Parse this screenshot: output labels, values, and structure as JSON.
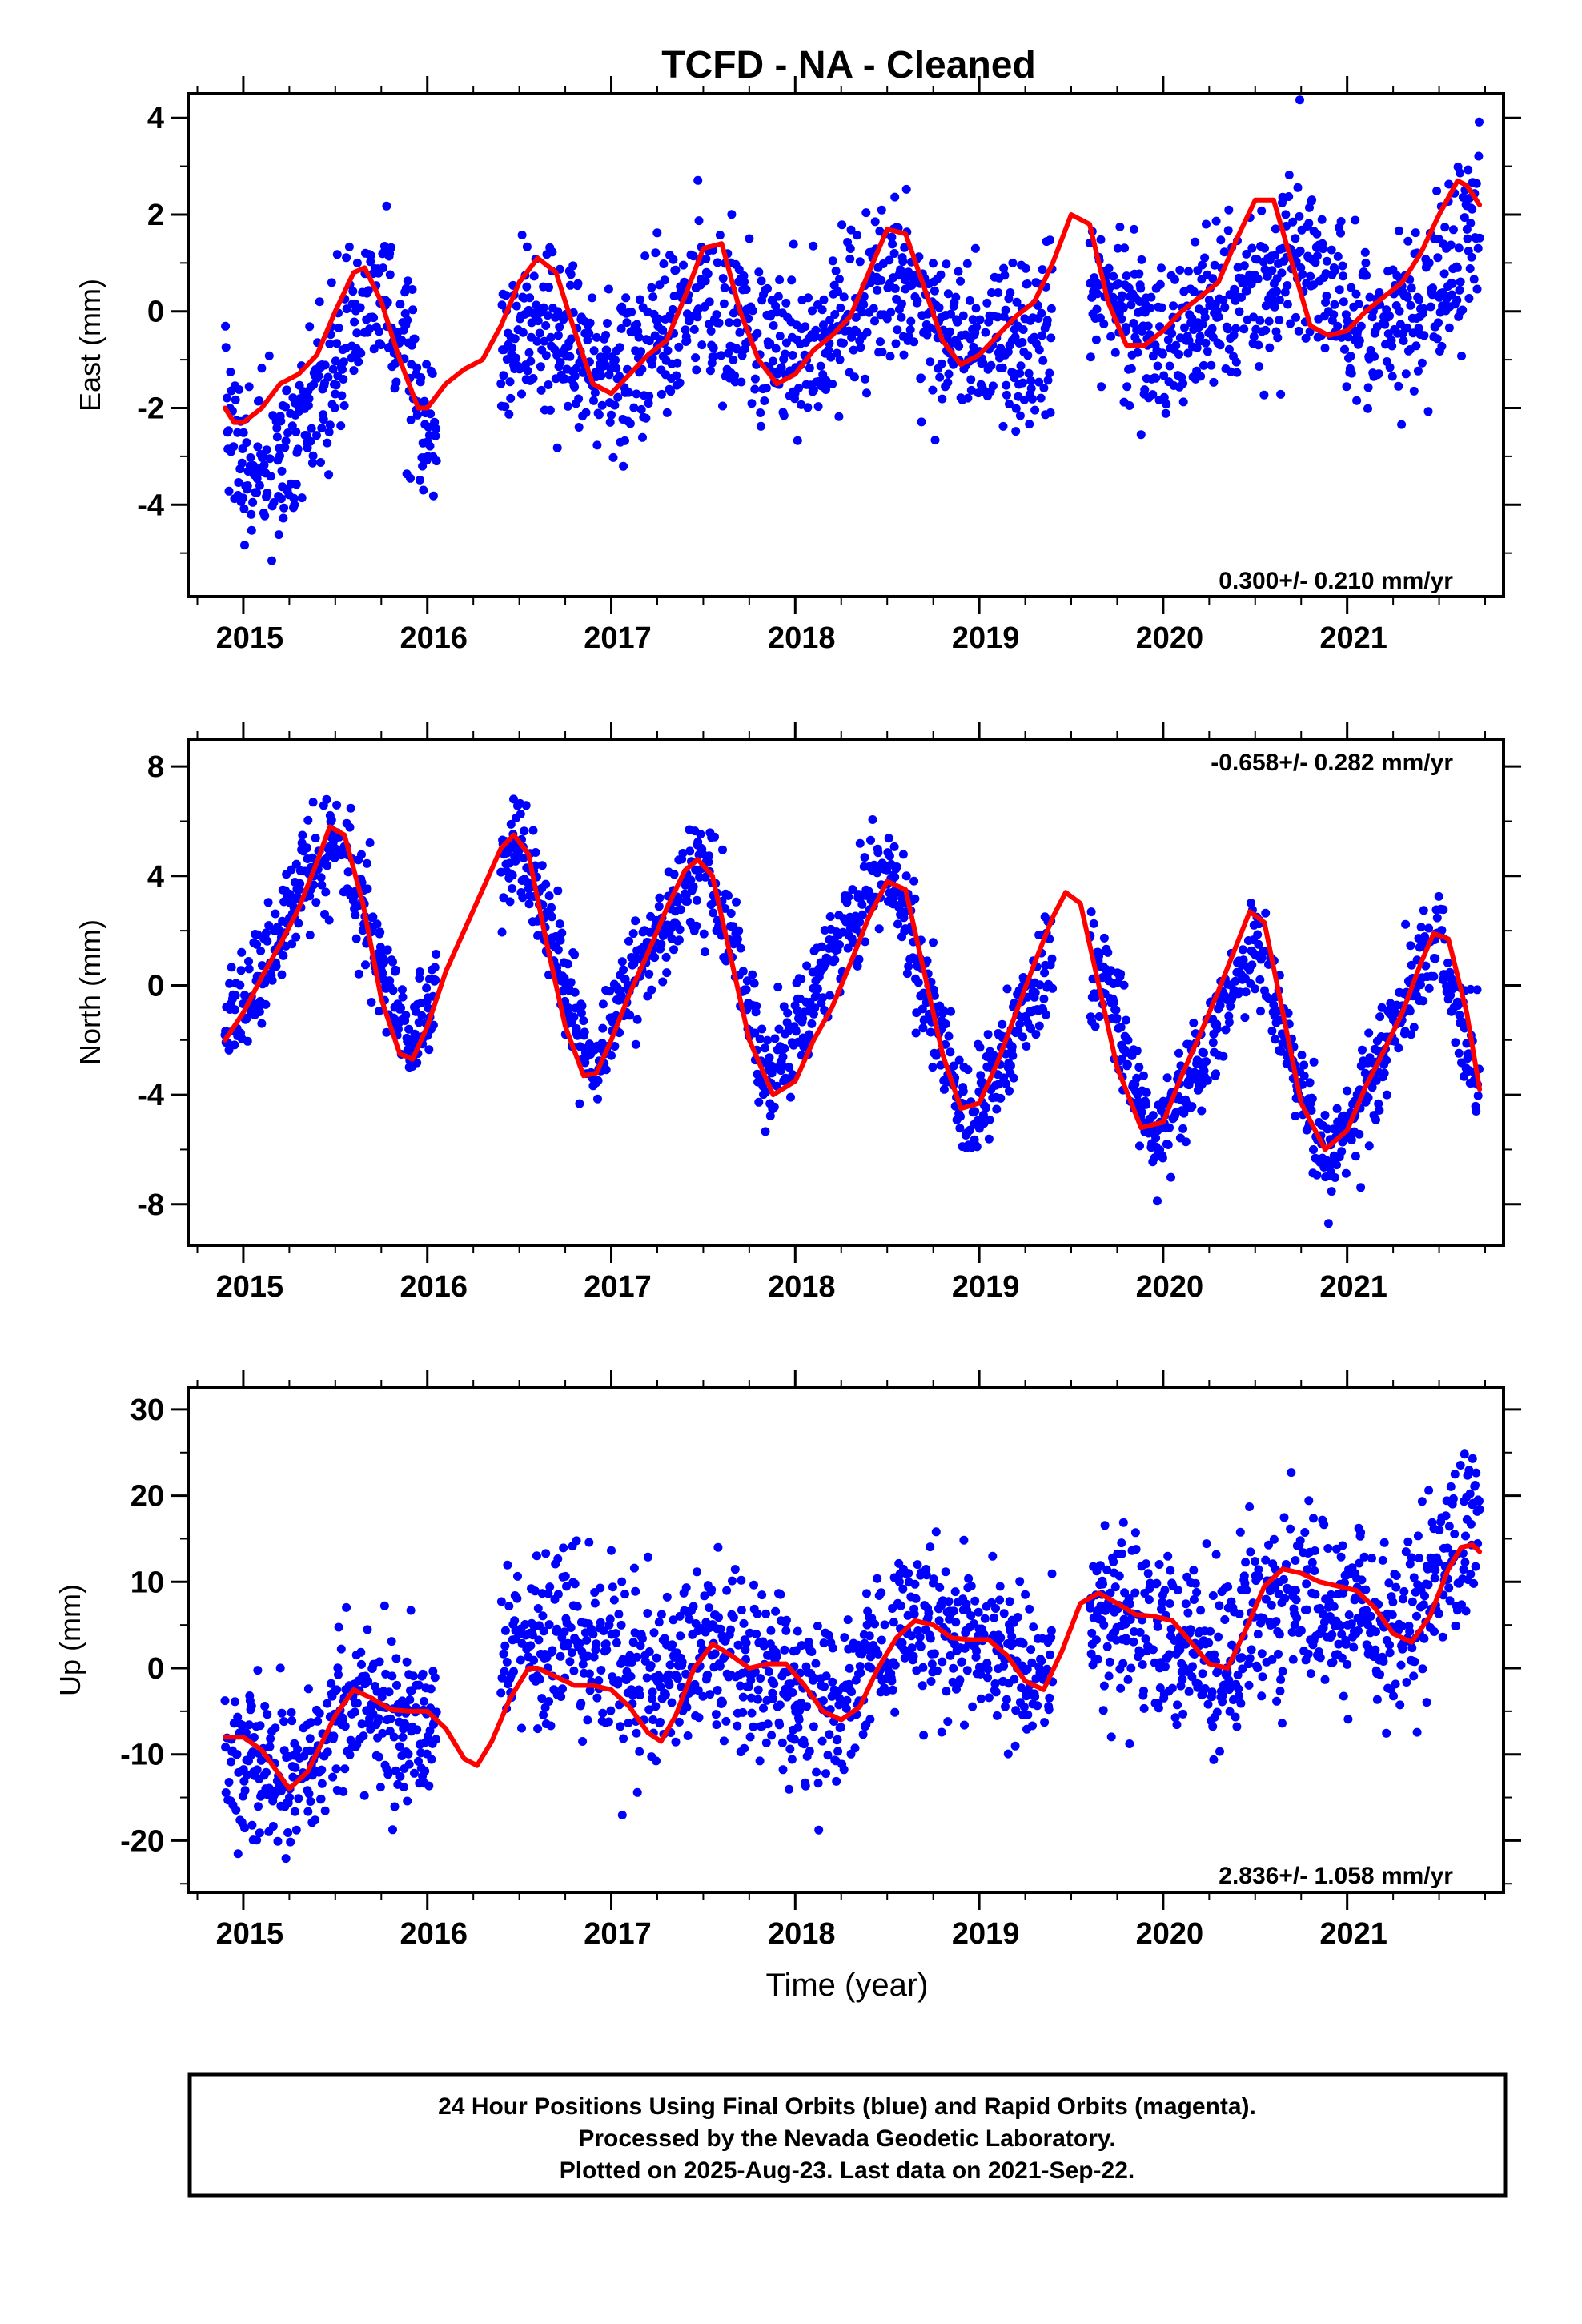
{
  "title": "TCFD  - NA - Cleaned",
  "xlabel": "Time (year)",
  "footer": {
    "line1": "24 Hour Positions Using Final Orbits (blue) and Rapid Orbits (magenta).",
    "line2": "Processed by the Nevada Geodetic Laboratory.",
    "line3": "Plotted on 2025-Aug-23. Last data on 2021-Sep-22."
  },
  "colors": {
    "points": "#0000ff",
    "fit": "#ff0000",
    "axes": "#000000"
  },
  "chart_data": [
    {
      "type": "scatter",
      "ylabel": "East (mm)",
      "rate_label": "0.300+/- 0.210 mm/yr",
      "rate_position": "bottom-right",
      "xlim": [
        2014.7,
        2021.85
      ],
      "ylim": [
        -5.9,
        4.5
      ],
      "xticks": [
        2015,
        2016,
        2017,
        2018,
        2019,
        2020,
        2021
      ],
      "yticks": [
        -4,
        -2,
        0,
        2,
        4
      ],
      "series": [
        {
          "kind": "points",
          "gaps": [
            [
              2016.05,
              2016.4
            ],
            [
              2019.4,
              2019.6
            ]
          ],
          "annual_amplitude": 1.3,
          "annual_phase": 0.6,
          "noise_sd": 0.85,
          "offsets": [
            [
              2014.9,
              -2.0
            ],
            [
              2015.0,
              -3.4
            ],
            [
              2015.3,
              -2.5
            ],
            [
              2015.6,
              -0.4
            ],
            [
              2015.75,
              0.6
            ],
            [
              2016.0,
              -2.5
            ],
            [
              2016.5,
              -0.2
            ],
            [
              2017.0,
              -1.3
            ],
            [
              2017.5,
              0.4
            ],
            [
              2018.0,
              -1.0
            ],
            [
              2018.5,
              0.6
            ],
            [
              2019.0,
              -0.8
            ],
            [
              2019.4,
              -0.3
            ],
            [
              2019.7,
              0.5
            ],
            [
              2020.0,
              -0.8
            ],
            [
              2020.5,
              0.4
            ],
            [
              2020.8,
              1.4
            ],
            [
              2021.0,
              -0.4
            ],
            [
              2021.5,
              0.5
            ],
            [
              2021.72,
              2.2
            ]
          ]
        },
        {
          "kind": "fit",
          "x": [
            2014.9,
            2014.95,
            2015.0,
            2015.1,
            2015.2,
            2015.3,
            2015.4,
            2015.5,
            2015.6,
            2015.66,
            2015.75,
            2015.85,
            2015.95,
            2016.0,
            2016.1,
            2016.2,
            2016.3,
            2016.4,
            2016.5,
            2016.6,
            2016.7,
            2016.8,
            2016.9,
            2017.0,
            2017.1,
            2017.2,
            2017.3,
            2017.4,
            2017.5,
            2017.6,
            2017.7,
            2017.8,
            2017.9,
            2018.0,
            2018.1,
            2018.2,
            2018.3,
            2018.4,
            2018.5,
            2018.6,
            2018.7,
            2018.8,
            2018.9,
            2019.0,
            2019.1,
            2019.2,
            2019.3,
            2019.4,
            2019.5,
            2019.6,
            2019.7,
            2019.8,
            2019.9,
            2020.0,
            2020.1,
            2020.2,
            2020.3,
            2020.4,
            2020.5,
            2020.6,
            2020.7,
            2020.8,
            2020.9,
            2021.0,
            2021.1,
            2021.2,
            2021.3,
            2021.4,
            2021.5,
            2021.6,
            2021.65,
            2021.72
          ],
          "y": [
            -2.0,
            -2.3,
            -2.3,
            -2.0,
            -1.5,
            -1.3,
            -0.9,
            0.0,
            0.8,
            0.9,
            0.2,
            -1.0,
            -2.0,
            -2.0,
            -1.5,
            -1.2,
            -1.0,
            -0.3,
            0.6,
            1.1,
            0.8,
            -0.4,
            -1.5,
            -1.7,
            -1.3,
            -0.9,
            -0.6,
            0.3,
            1.3,
            1.4,
            0.0,
            -1.0,
            -1.5,
            -1.3,
            -0.8,
            -0.5,
            -0.1,
            0.8,
            1.7,
            1.6,
            0.5,
            -0.6,
            -1.1,
            -0.9,
            -0.5,
            -0.1,
            0.2,
            1.0,
            2.0,
            1.8,
            0.2,
            -0.7,
            -0.7,
            -0.4,
            0.0,
            0.3,
            0.6,
            1.5,
            2.3,
            2.3,
            1.0,
            -0.3,
            -0.5,
            -0.4,
            0.0,
            0.3,
            0.6,
            1.2,
            2.0,
            2.7,
            2.6,
            2.2
          ]
        }
      ]
    },
    {
      "type": "scatter",
      "ylabel": "North (mm)",
      "rate_label": "-0.658+/- 0.282 mm/yr",
      "rate_position": "top-right",
      "xlim": [
        2014.7,
        2021.85
      ],
      "ylim": [
        -9.5,
        9.0
      ],
      "xticks": [
        2015,
        2016,
        2017,
        2018,
        2019,
        2020,
        2021
      ],
      "yticks": [
        -8,
        -4,
        0,
        4,
        8
      ],
      "series": [
        {
          "kind": "points",
          "gaps": [
            [
              2016.05,
              2016.4
            ],
            [
              2019.4,
              2019.6
            ]
          ],
          "annual_amplitude": 0.5,
          "annual_phase": 0.5,
          "noise_sd": 0.9,
          "offsets": [
            [
              2014.9,
              -1.5
            ],
            [
              2015.1,
              0.5
            ],
            [
              2015.3,
              3.5
            ],
            [
              2015.5,
              5.5
            ],
            [
              2015.75,
              1.0
            ],
            [
              2015.9,
              -2.5
            ],
            [
              2016.05,
              0.0
            ],
            [
              2016.4,
              4.0
            ],
            [
              2016.5,
              5.5
            ],
            [
              2016.7,
              1.0
            ],
            [
              2016.9,
              -3.0
            ],
            [
              2017.1,
              0.0
            ],
            [
              2017.3,
              2.5
            ],
            [
              2017.5,
              4.5
            ],
            [
              2017.7,
              1.0
            ],
            [
              2017.85,
              -4.0
            ],
            [
              2018.0,
              -1.5
            ],
            [
              2018.2,
              1.0
            ],
            [
              2018.5,
              4.5
            ],
            [
              2018.7,
              0.0
            ],
            [
              2018.95,
              -5.0
            ],
            [
              2019.2,
              -1.5
            ],
            [
              2019.4,
              1.0
            ],
            [
              2019.7,
              0.0
            ],
            [
              2019.95,
              -6.0
            ],
            [
              2020.2,
              -3.0
            ],
            [
              2020.5,
              2.0
            ],
            [
              2020.7,
              -3.0
            ],
            [
              2020.9,
              -6.5
            ],
            [
              2021.1,
              -4.0
            ],
            [
              2021.35,
              0.0
            ],
            [
              2021.5,
              2.0
            ],
            [
              2021.72,
              -4.0
            ]
          ]
        },
        {
          "kind": "fit",
          "x": [
            2014.9,
            2015.0,
            2015.1,
            2015.2,
            2015.3,
            2015.4,
            2015.47,
            2015.55,
            2015.65,
            2015.75,
            2015.85,
            2015.92,
            2016.0,
            2016.1,
            2016.2,
            2016.3,
            2016.4,
            2016.47,
            2016.55,
            2016.65,
            2016.75,
            2016.85,
            2016.92,
            2017.0,
            2017.1,
            2017.2,
            2017.3,
            2017.4,
            2017.47,
            2017.55,
            2017.65,
            2017.75,
            2017.88,
            2018.0,
            2018.1,
            2018.2,
            2018.3,
            2018.4,
            2018.5,
            2018.6,
            2018.7,
            2018.8,
            2018.9,
            2019.0,
            2019.1,
            2019.2,
            2019.3,
            2019.4,
            2019.47,
            2019.55,
            2019.65,
            2019.75,
            2019.88,
            2020.0,
            2020.1,
            2020.2,
            2020.3,
            2020.4,
            2020.47,
            2020.55,
            2020.65,
            2020.75,
            2020.88,
            2021.0,
            2021.1,
            2021.2,
            2021.3,
            2021.4,
            2021.47,
            2021.55,
            2021.65,
            2021.72
          ],
          "y": [
            -2.0,
            -1.0,
            0.3,
            1.5,
            2.8,
            4.5,
            5.8,
            5.5,
            3.0,
            -0.5,
            -2.5,
            -2.7,
            -1.5,
            0.5,
            2.0,
            3.5,
            5.0,
            5.5,
            4.8,
            1.5,
            -1.5,
            -3.3,
            -3.2,
            -2.0,
            -0.3,
            1.2,
            2.8,
            4.2,
            4.6,
            4.0,
            1.0,
            -2.0,
            -4.0,
            -3.5,
            -2.0,
            -0.8,
            0.8,
            2.5,
            3.8,
            3.5,
            0.5,
            -2.5,
            -4.5,
            -4.3,
            -2.8,
            -1.0,
            0.8,
            2.5,
            3.4,
            3.0,
            0.0,
            -3.0,
            -5.2,
            -5.0,
            -3.3,
            -1.8,
            -0.2,
            1.5,
            2.7,
            2.3,
            -1.0,
            -4.3,
            -6.0,
            -5.3,
            -3.7,
            -2.4,
            -1.0,
            0.8,
            1.9,
            1.7,
            -1.0,
            -3.8
          ]
        }
      ]
    },
    {
      "type": "scatter",
      "ylabel": "Up (mm)",
      "rate_label": "2.836+/- 1.058 mm/yr",
      "rate_position": "bottom-right",
      "xlim": [
        2014.7,
        2021.85
      ],
      "ylim": [
        -26,
        32.5
      ],
      "xticks": [
        2015,
        2016,
        2017,
        2018,
        2019,
        2020,
        2021
      ],
      "yticks": [
        -20,
        -10,
        0,
        10,
        20,
        30
      ],
      "series": [
        {
          "kind": "points",
          "gaps": [
            [
              2016.05,
              2016.4
            ],
            [
              2019.4,
              2019.6
            ]
          ],
          "annual_amplitude": 2.5,
          "annual_phase": 0.6,
          "noise_sd": 4.8,
          "offsets": [
            [
              2014.9,
              -10.0
            ],
            [
              2015.25,
              -14.0
            ],
            [
              2015.6,
              -3.0
            ],
            [
              2016.0,
              -7.0
            ],
            [
              2016.4,
              2.0
            ],
            [
              2016.7,
              4.0
            ],
            [
              2017.0,
              1.0
            ],
            [
              2017.3,
              -2.0
            ],
            [
              2017.5,
              3.0
            ],
            [
              2017.8,
              1.0
            ],
            [
              2018.0,
              -2.0
            ],
            [
              2018.25,
              -5.0
            ],
            [
              2018.6,
              5.0
            ],
            [
              2019.0,
              3.0
            ],
            [
              2019.3,
              -2.0
            ],
            [
              2019.6,
              7.0
            ],
            [
              2020.0,
              4.0
            ],
            [
              2020.3,
              0.0
            ],
            [
              2020.6,
              9.0
            ],
            [
              2021.0,
              7.0
            ],
            [
              2021.3,
              4.0
            ],
            [
              2021.6,
              13.0
            ],
            [
              2021.72,
              15.0
            ]
          ]
        },
        {
          "kind": "fit",
          "x": [
            2014.9,
            2015.0,
            2015.1,
            2015.2,
            2015.25,
            2015.35,
            2015.5,
            2015.6,
            2015.7,
            2015.8,
            2015.9,
            2016.0,
            2016.1,
            2016.2,
            2016.27,
            2016.35,
            2016.45,
            2016.55,
            2016.6,
            2016.7,
            2016.8,
            2016.9,
            2017.0,
            2017.1,
            2017.2,
            2017.27,
            2017.35,
            2017.45,
            2017.55,
            2017.65,
            2017.75,
            2017.85,
            2017.95,
            2018.05,
            2018.15,
            2018.25,
            2018.35,
            2018.45,
            2018.55,
            2018.65,
            2018.75,
            2018.85,
            2018.95,
            2019.05,
            2019.15,
            2019.25,
            2019.35,
            2019.45,
            2019.55,
            2019.65,
            2019.75,
            2019.85,
            2019.95,
            2020.05,
            2020.15,
            2020.25,
            2020.35,
            2020.45,
            2020.55,
            2020.65,
            2020.75,
            2020.85,
            2020.95,
            2021.05,
            2021.15,
            2021.25,
            2021.35,
            2021.45,
            2021.55,
            2021.62,
            2021.68,
            2021.72
          ],
          "y": [
            -8.0,
            -8.0,
            -9.5,
            -12.5,
            -14.0,
            -12.0,
            -5.5,
            -2.5,
            -3.5,
            -4.8,
            -5.0,
            -5.0,
            -7.0,
            -10.5,
            -11.3,
            -8.5,
            -3.5,
            0.0,
            0.0,
            -1.0,
            -2.0,
            -2.0,
            -2.5,
            -4.5,
            -7.5,
            -8.5,
            -5.5,
            0.0,
            2.8,
            1.5,
            0.0,
            0.5,
            0.5,
            -2.0,
            -5.0,
            -6.0,
            -4.5,
            0.0,
            3.5,
            5.5,
            5.0,
            3.5,
            3.3,
            3.3,
            1.5,
            -1.5,
            -2.5,
            2.0,
            7.5,
            8.7,
            7.5,
            6.2,
            6.0,
            5.5,
            3.0,
            0.5,
            0.0,
            4.5,
            9.5,
            11.5,
            11.0,
            10.0,
            9.5,
            9.0,
            7.0,
            4.0,
            3.0,
            6.0,
            11.5,
            14.0,
            14.3,
            13.5
          ]
        }
      ]
    }
  ]
}
